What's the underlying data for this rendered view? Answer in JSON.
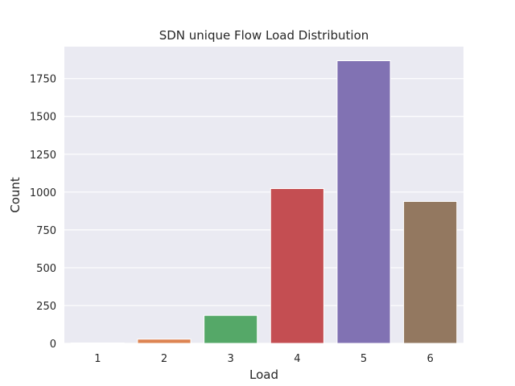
{
  "chart_data": {
    "type": "bar",
    "title": "SDN unique Flow Load Distribution",
    "xlabel": "Load",
    "ylabel": "Count",
    "categories": [
      "1",
      "2",
      "3",
      "4",
      "5",
      "6"
    ],
    "values": [
      3,
      28,
      185,
      1023,
      1868,
      938
    ],
    "ylim": [
      0,
      1961
    ],
    "yticks": [
      0,
      250,
      500,
      750,
      1000,
      1250,
      1500,
      1750
    ],
    "grid": true,
    "colors": [
      "#4c72b0",
      "#dd8452",
      "#55a868",
      "#c44e52",
      "#8172b3",
      "#937860"
    ],
    "background": "#eaeaf2"
  }
}
